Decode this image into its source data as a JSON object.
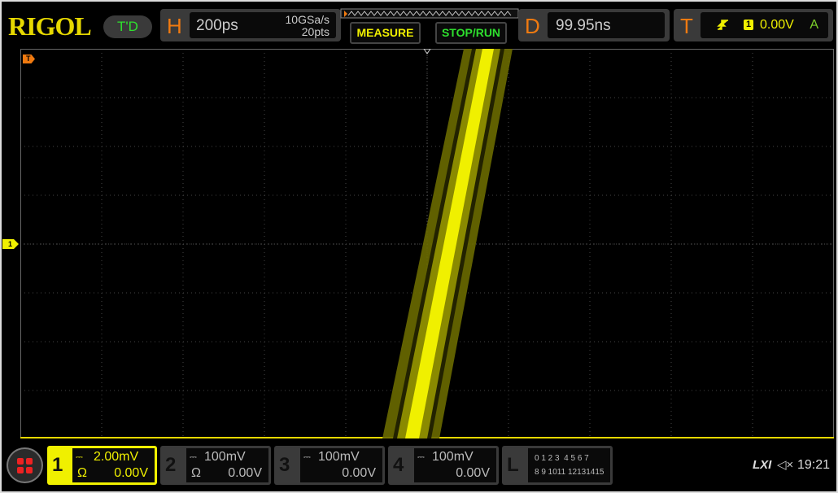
{
  "brand": "RIGOL",
  "mode_badge": "T'D",
  "horizontal": {
    "label": "H",
    "timebase": "200ps",
    "sample_rate": "10GSa/s",
    "memory_depth": "20pts"
  },
  "buttons": {
    "measure": "MEASURE",
    "stop_run": "STOP/RUN"
  },
  "delay": {
    "label": "D",
    "value": "99.95ns"
  },
  "trigger": {
    "label": "T",
    "source": "1",
    "level": "0.00V",
    "mode": "A"
  },
  "markers": {
    "trigger_marker": "T",
    "channel1_marker": "1"
  },
  "channels": [
    {
      "num": "1",
      "scale": "2.00mV",
      "impedance": "Ω",
      "offset": "0.00V",
      "active": true,
      "color": "#f0f000"
    },
    {
      "num": "2",
      "scale": "100mV",
      "impedance": "Ω",
      "offset": "0.00V",
      "active": false
    },
    {
      "num": "3",
      "scale": "100mV",
      "impedance": "",
      "offset": "0.00V",
      "active": false
    },
    {
      "num": "4",
      "scale": "100mV",
      "impedance": "",
      "offset": "0.00V",
      "active": false
    }
  ],
  "logic": {
    "label": "L",
    "row1": "0 1 2 3  4 5 6 7",
    "row2": "8 9 1011 12131415"
  },
  "status": {
    "lxi": "LXI",
    "time": "19:21",
    "sound": "muted"
  }
}
